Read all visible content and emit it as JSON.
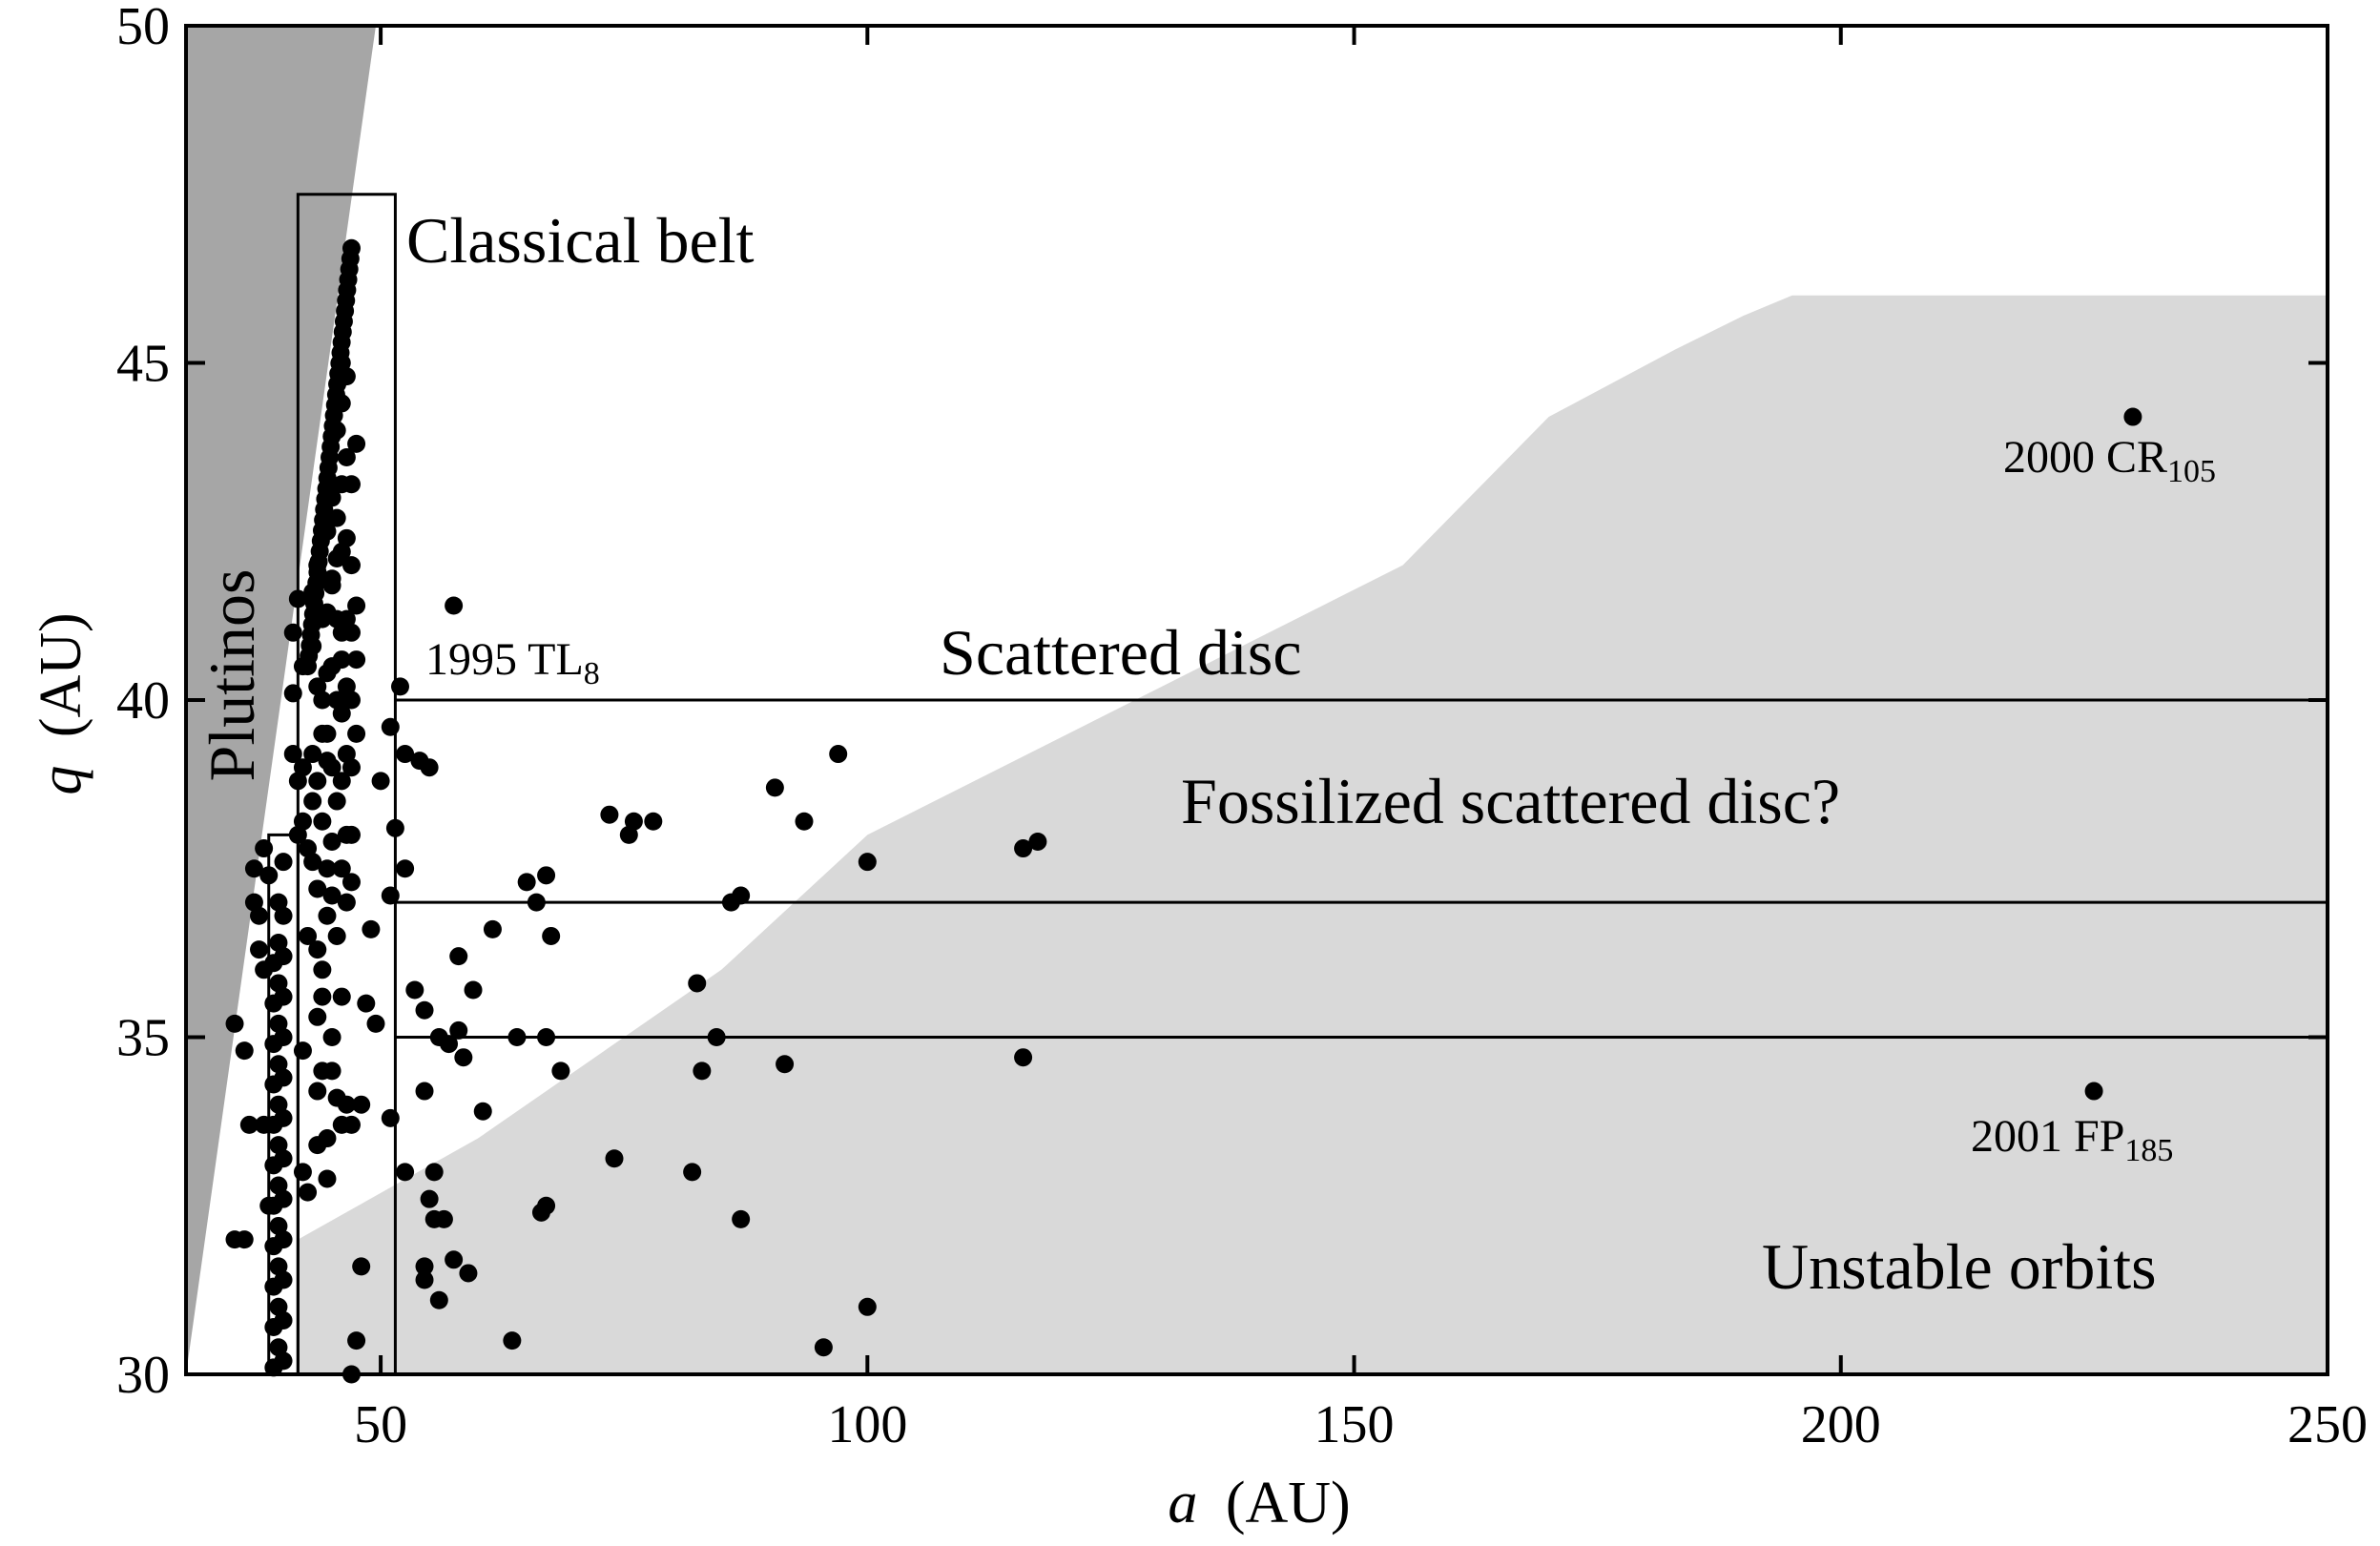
{
  "chart_data": {
    "type": "scatter",
    "title": "",
    "xlabel": {
      "var": "a",
      "unit": "(AU)"
    },
    "ylabel": {
      "var": "q",
      "unit": "(AU)"
    },
    "xlim": [
      30,
      250
    ],
    "ylim": [
      30,
      50
    ],
    "xticks": [
      50,
      100,
      150,
      200,
      250
    ],
    "yticks": [
      30,
      35,
      40,
      45,
      50
    ],
    "colors": {
      "points": "#000000",
      "unstable_region": "#d9d9d9",
      "dark_region": "#a6a6a6",
      "axes": "#000000"
    },
    "horizontal_lines": [
      40,
      37,
      35
    ],
    "regions": {
      "unstable": [
        [
          41.5,
          30
        ],
        [
          41.5,
          32
        ],
        [
          60,
          33.5
        ],
        [
          85,
          36
        ],
        [
          100,
          38
        ],
        [
          155,
          42
        ],
        [
          170,
          44.2
        ],
        [
          183,
          45.2
        ],
        [
          190,
          45.7
        ],
        [
          195,
          46
        ],
        [
          250,
          46
        ],
        [
          250,
          30
        ]
      ],
      "dark": [
        [
          30,
          30
        ],
        [
          30,
          50
        ],
        [
          49.5,
          50
        ]
      ]
    },
    "boxes": [
      {
        "name": "classical",
        "x0": 41.5,
        "x1": 51.5,
        "y0": 30,
        "y1": 47.5
      },
      {
        "name": "plutinos",
        "x0": 38.5,
        "x1": 41.5,
        "y0": 30,
        "y1": 38
      }
    ],
    "region_labels": {
      "classical": "Classical belt",
      "plutinos": "Plutinos",
      "scattered": "Scattered disc",
      "fossilized": "Fossilized scattered disc?",
      "unstable": "Unstable orbits"
    },
    "labeled_objects": [
      {
        "main": "1995 TL",
        "sub": "8",
        "a": 52,
        "q": 40.2
      },
      {
        "main": "2000 CR",
        "sub": "105",
        "a": 230,
        "q": 44.2
      },
      {
        "main": "2001 FP",
        "sub": "185",
        "a": 226,
        "q": 34.2
      }
    ],
    "series": [
      {
        "values": [
          [
            52,
            40.2
          ],
          [
            57.5,
            41.4
          ],
          [
            51,
            39.6
          ],
          [
            52.5,
            39.2
          ],
          [
            54,
            39.1
          ],
          [
            55,
            39
          ],
          [
            51.5,
            38.1
          ],
          [
            52.5,
            37.5
          ],
          [
            51,
            37.1
          ],
          [
            49.5,
            35.2
          ],
          [
            51,
            33.8
          ],
          [
            52.5,
            33
          ],
          [
            54.5,
            34.2
          ],
          [
            53.5,
            35.7
          ],
          [
            54.5,
            35.4
          ],
          [
            55.5,
            33
          ],
          [
            55,
            32.6
          ],
          [
            55.5,
            32.3
          ],
          [
            56.5,
            32.3
          ],
          [
            54.5,
            31.6
          ],
          [
            54.5,
            31.4
          ],
          [
            56,
            31.1
          ],
          [
            57.5,
            31.7
          ],
          [
            59,
            31.5
          ],
          [
            56,
            35
          ],
          [
            57,
            34.9
          ],
          [
            58,
            35.1
          ],
          [
            58,
            36.2
          ],
          [
            58.5,
            34.7
          ],
          [
            59.5,
            35.7
          ],
          [
            60.5,
            33.9
          ],
          [
            61.5,
            36.6
          ],
          [
            63.5,
            30.5
          ],
          [
            64,
            35
          ],
          [
            65,
            37.3
          ],
          [
            66,
            37
          ],
          [
            66.5,
            32.4
          ],
          [
            67,
            32.5
          ],
          [
            67,
            35
          ],
          [
            67,
            37.4
          ],
          [
            67.5,
            36.5
          ],
          [
            68.5,
            34.5
          ],
          [
            73.5,
            38.3
          ],
          [
            74,
            33.2
          ],
          [
            75.5,
            38
          ],
          [
            76,
            38.2
          ],
          [
            78,
            38.2
          ],
          [
            82,
            33
          ],
          [
            82.5,
            35.8
          ],
          [
            83,
            34.5
          ],
          [
            84.5,
            35
          ],
          [
            86,
            37
          ],
          [
            87,
            37.1
          ],
          [
            87,
            32.3
          ],
          [
            90.5,
            38.7
          ],
          [
            91.5,
            34.6
          ],
          [
            93.5,
            38.2
          ],
          [
            95.5,
            30.4
          ],
          [
            97,
            39.2
          ],
          [
            100,
            37.6
          ],
          [
            100,
            31
          ],
          [
            116,
            37.8
          ],
          [
            117.5,
            37.9
          ],
          [
            116,
            34.7
          ],
          [
            230,
            44.2
          ],
          [
            226,
            34.2
          ],
          [
            35,
            35.2
          ],
          [
            35,
            32
          ],
          [
            36,
            32
          ],
          [
            36,
            34.8
          ],
          [
            36.5,
            33.7
          ],
          [
            37,
            37
          ],
          [
            37,
            37.5
          ],
          [
            37.5,
            36.8
          ],
          [
            37.5,
            36.3
          ],
          [
            38,
            36
          ],
          [
            38,
            37.8
          ],
          [
            38.5,
            37.4
          ],
          [
            38,
            33.7
          ],
          [
            38.5,
            32.5
          ],
          [
            39,
            30.1
          ],
          [
            39,
            30.7
          ],
          [
            39,
            31.3
          ],
          [
            39,
            31.9
          ],
          [
            39,
            32.5
          ],
          [
            39,
            33.1
          ],
          [
            39,
            33.7
          ],
          [
            39,
            34.3
          ],
          [
            39,
            34.9
          ],
          [
            39,
            35.5
          ],
          [
            39,
            36.1
          ],
          [
            39.5,
            30.4
          ],
          [
            39.5,
            31
          ],
          [
            39.5,
            31.6
          ],
          [
            39.5,
            32.2
          ],
          [
            39.5,
            32.8
          ],
          [
            39.5,
            33.4
          ],
          [
            39.5,
            34
          ],
          [
            39.5,
            34.6
          ],
          [
            39.5,
            35.2
          ],
          [
            39.5,
            35.8
          ],
          [
            39.5,
            36.4
          ],
          [
            39.5,
            37
          ],
          [
            40,
            30.2
          ],
          [
            40,
            30.8
          ],
          [
            40,
            31.4
          ],
          [
            40,
            32
          ],
          [
            40,
            32.6
          ],
          [
            40,
            33.2
          ],
          [
            40,
            33.8
          ],
          [
            40,
            34.4
          ],
          [
            40,
            35
          ],
          [
            40,
            35.6
          ],
          [
            40,
            36.2
          ],
          [
            40,
            36.8
          ],
          [
            40,
            37.6
          ],
          [
            41.5,
            38
          ],
          [
            41.5,
            38.8
          ],
          [
            41,
            39.2
          ],
          [
            41,
            40.1
          ],
          [
            41,
            41
          ],
          [
            41.5,
            41.5
          ],
          [
            42,
            39
          ],
          [
            42,
            38.2
          ],
          [
            42,
            40.5
          ],
          [
            42,
            33
          ],
          [
            42,
            34.8
          ],
          [
            42.5,
            36.5
          ],
          [
            42.5,
            37.8
          ],
          [
            42.5,
            32.7
          ],
          [
            43,
            40.8
          ],
          [
            43,
            41.6
          ],
          [
            43,
            39.2
          ],
          [
            43,
            37.6
          ],
          [
            43.5,
            42
          ],
          [
            43.5,
            40.2
          ],
          [
            43.5,
            38.8
          ],
          [
            43.5,
            37.2
          ],
          [
            43.5,
            36.3
          ],
          [
            43.5,
            35.3
          ],
          [
            43.5,
            34.2
          ],
          [
            43.5,
            33.4
          ],
          [
            44,
            41.2
          ],
          [
            44,
            39.5
          ],
          [
            44,
            38.2
          ],
          [
            44,
            36
          ],
          [
            44,
            35.6
          ],
          [
            44,
            34.5
          ],
          [
            44.5,
            42.5
          ],
          [
            44.5,
            41.3
          ],
          [
            44.5,
            40.4
          ],
          [
            44.5,
            39.5
          ],
          [
            44.5,
            37.5
          ],
          [
            44.5,
            36.8
          ],
          [
            44.5,
            32.9
          ],
          [
            44.5,
            33.5
          ],
          [
            45,
            43
          ],
          [
            45,
            41.7
          ],
          [
            45,
            40.5
          ],
          [
            45,
            39
          ],
          [
            45,
            37.9
          ],
          [
            45,
            35
          ],
          [
            45,
            34.5
          ],
          [
            45,
            37.1
          ],
          [
            45.5,
            44
          ],
          [
            45.5,
            42.7
          ],
          [
            45.5,
            41.2
          ],
          [
            45.5,
            40
          ],
          [
            45.5,
            38.5
          ],
          [
            45.5,
            36.5
          ],
          [
            45.5,
            34.1
          ],
          [
            46,
            45
          ],
          [
            46,
            44.4
          ],
          [
            46,
            43.2
          ],
          [
            46,
            42.2
          ],
          [
            46,
            41
          ],
          [
            46,
            39.8
          ],
          [
            46,
            38.8
          ],
          [
            46,
            37.5
          ],
          [
            46,
            35.6
          ],
          [
            46,
            33.7
          ],
          [
            46.5,
            44.8
          ],
          [
            46.5,
            43.6
          ],
          [
            46.5,
            42.4
          ],
          [
            46.5,
            41.2
          ],
          [
            46.5,
            40.2
          ],
          [
            46.5,
            39.2
          ],
          [
            46.5,
            38
          ],
          [
            46.5,
            37
          ],
          [
            46.5,
            34
          ],
          [
            47,
            43.2
          ],
          [
            47,
            42
          ],
          [
            47,
            41
          ],
          [
            47,
            40
          ],
          [
            47,
            39
          ],
          [
            47,
            38
          ],
          [
            47,
            37.3
          ],
          [
            47,
            33.7
          ],
          [
            47,
            30
          ],
          [
            47.5,
            43.8
          ],
          [
            47.5,
            41.4
          ],
          [
            47.5,
            40.6
          ],
          [
            47.5,
            39.5
          ],
          [
            47.5,
            30.5
          ],
          [
            48,
            34
          ],
          [
            48,
            31.6
          ],
          [
            48.5,
            35.5
          ],
          [
            49,
            36.6
          ],
          [
            50,
            38.8
          ],
          [
            45,
            41.8
          ],
          [
            45.5,
            42.1
          ],
          [
            46,
            40.6
          ],
          [
            44,
            40
          ],
          [
            44.5,
            39.1
          ],
          [
            43,
            38.5
          ]
        ]
      }
    ]
  }
}
